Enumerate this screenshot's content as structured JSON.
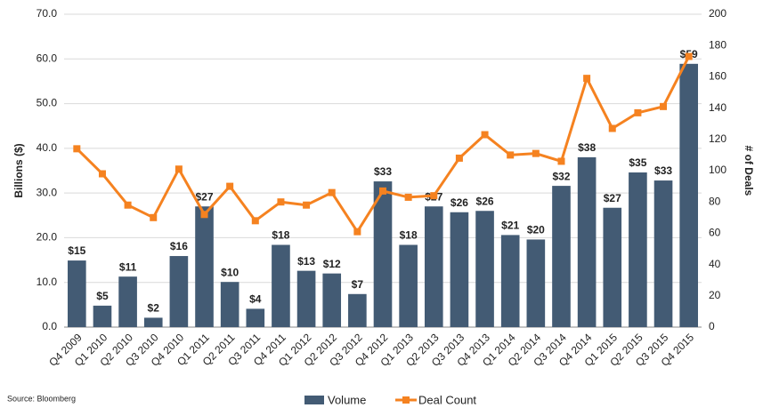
{
  "chart_data": {
    "type": "bar-line",
    "categories": [
      "Q4 2009",
      "Q1 2010",
      "Q2 2010",
      "Q3 2010",
      "Q4 2010",
      "Q1 2011",
      "Q2 2011",
      "Q3 2011",
      "Q4 2011",
      "Q1 2012",
      "Q2 2012",
      "Q3 2012",
      "Q4 2012",
      "Q1 2013",
      "Q2 2013",
      "Q3 2013",
      "Q4 2013",
      "Q1 2014",
      "Q2 2014",
      "Q3 2014",
      "Q4 2014",
      "Q1 2015",
      "Q2 2015",
      "Q3 2015",
      "Q4 2015"
    ],
    "series": [
      {
        "name": "Volume",
        "color": "#435b74",
        "type": "bar",
        "values": [
          14.9,
          4.8,
          11.3,
          2.1,
          15.9,
          27.0,
          10.1,
          4.1,
          18.4,
          12.6,
          12.0,
          7.4,
          32.6,
          18.4,
          27.0,
          25.7,
          26.0,
          20.6,
          19.6,
          31.6,
          38.0,
          26.7,
          34.6,
          32.8,
          58.9
        ],
        "value_labels": [
          "$15",
          "$5",
          "$11",
          "$2",
          "$16",
          "$27",
          "$10",
          "$4",
          "$18",
          "$13",
          "$12",
          "$7",
          "$33",
          "$18",
          "$27",
          "$26",
          "$26",
          "$21",
          "$20",
          "$32",
          "$38",
          "$27",
          "$35",
          "$33",
          "$59"
        ]
      },
      {
        "name": "Deal Count",
        "color": "#f58220",
        "type": "line",
        "axis": "y2",
        "values": [
          114,
          98,
          78,
          70,
          101,
          72,
          90,
          68,
          80,
          78,
          86,
          61,
          87,
          83,
          84,
          108,
          123,
          110,
          111,
          106,
          159,
          127,
          137,
          141,
          173
        ]
      }
    ],
    "ylabel": "Billions ($)",
    "y2label": "# of Deals",
    "ylim": [
      0,
      70
    ],
    "yticks": [
      {
        "value": 0,
        "label": "0.0"
      },
      {
        "value": 10,
        "label": "10.0"
      },
      {
        "value": 20,
        "label": "20.0"
      },
      {
        "value": 30,
        "label": "30.0"
      },
      {
        "value": 40,
        "label": "40.0"
      },
      {
        "value": 50,
        "label": "50.0"
      },
      {
        "value": 60,
        "label": "60.0"
      },
      {
        "value": 70,
        "label": "70.0"
      }
    ],
    "y2lim": [
      0,
      200
    ],
    "y2ticks": [
      0,
      20,
      40,
      60,
      80,
      100,
      120,
      140,
      160,
      180,
      200
    ],
    "grid": true,
    "legend": "bottom",
    "source": "Source: Bloomberg"
  }
}
